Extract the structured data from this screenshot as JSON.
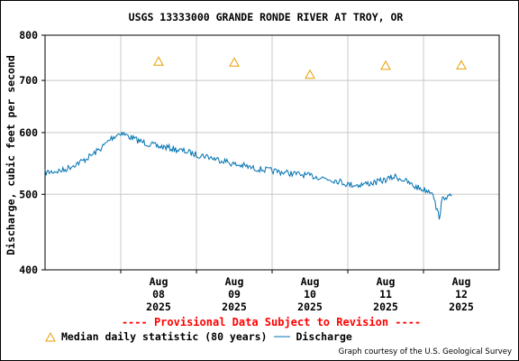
{
  "chart_data": {
    "type": "line",
    "title": "USGS 13333000 GRANDE RONDE RIVER AT TROY, OR",
    "ylabel": "Discharge, cubic feet per second",
    "xlabel": "",
    "y_scale": "log",
    "ylim": [
      400,
      800
    ],
    "y_ticks": [
      400,
      500,
      600,
      700,
      800
    ],
    "y_tick_labels": [
      "400",
      "500",
      "600",
      "700",
      "800"
    ],
    "xlim": [
      "2025-08-07 00:00",
      "2025-08-13 00:00"
    ],
    "x_ticks": [
      {
        "date": "2025-08-08 12:00",
        "label": [
          "Aug",
          "08",
          "2025"
        ]
      },
      {
        "date": "2025-08-09 12:00",
        "label": [
          "Aug",
          "09",
          "2025"
        ]
      },
      {
        "date": "2025-08-10 12:00",
        "label": [
          "Aug",
          "10",
          "2025"
        ]
      },
      {
        "date": "2025-08-11 12:00",
        "label": [
          "Aug",
          "11",
          "2025"
        ]
      },
      {
        "date": "2025-08-12 12:00",
        "label": [
          "Aug",
          "12",
          "2025"
        ]
      }
    ],
    "grid": true,
    "series": [
      {
        "name": "Median daily statistic (80 years)",
        "style": "triangle-markers",
        "color": "#e69f00",
        "x": [
          "2025-08-08 12:00",
          "2025-08-09 12:00",
          "2025-08-10 12:00",
          "2025-08-11 12:00",
          "2025-08-12 12:00"
        ],
        "values": [
          740,
          738,
          712,
          731,
          732
        ]
      },
      {
        "name": "Discharge",
        "style": "line",
        "color": "#0072b2",
        "x": [
          "2025-08-07 00:00",
          "2025-08-07 03:00",
          "2025-08-07 06:00",
          "2025-08-07 09:00",
          "2025-08-07 12:00",
          "2025-08-07 15:00",
          "2025-08-07 18:00",
          "2025-08-07 21:00",
          "2025-08-08 00:00",
          "2025-08-08 03:00",
          "2025-08-08 06:00",
          "2025-08-08 09:00",
          "2025-08-08 12:00",
          "2025-08-08 15:00",
          "2025-08-08 18:00",
          "2025-08-08 21:00",
          "2025-08-09 00:00",
          "2025-08-09 03:00",
          "2025-08-09 06:00",
          "2025-08-09 09:00",
          "2025-08-09 12:00",
          "2025-08-09 15:00",
          "2025-08-09 18:00",
          "2025-08-09 21:00",
          "2025-08-10 00:00",
          "2025-08-10 03:00",
          "2025-08-10 06:00",
          "2025-08-10 09:00",
          "2025-08-10 12:00",
          "2025-08-10 15:00",
          "2025-08-10 18:00",
          "2025-08-10 21:00",
          "2025-08-11 00:00",
          "2025-08-11 03:00",
          "2025-08-11 06:00",
          "2025-08-11 09:00",
          "2025-08-11 12:00",
          "2025-08-11 15:00",
          "2025-08-11 18:00",
          "2025-08-11 21:00",
          "2025-08-12 00:00",
          "2025-08-12 03:00",
          "2025-08-12 04:00",
          "2025-08-12 05:00",
          "2025-08-12 06:00",
          "2025-08-12 07:00",
          "2025-08-12 08:00",
          "2025-08-12 09:00"
        ],
        "values": [
          533,
          535,
          537,
          545,
          552,
          562,
          574,
          590,
          600,
          592,
          585,
          580,
          576,
          574,
          570,
          567,
          562,
          560,
          555,
          552,
          546,
          544,
          540,
          538,
          536,
          534,
          532,
          530,
          528,
          526,
          523,
          520,
          515,
          514,
          516,
          518,
          522,
          527,
          521,
          512,
          507,
          504,
          480,
          468,
          492,
          498,
          495,
          499
        ]
      }
    ]
  },
  "legend": {
    "median_label": "Median daily statistic (80 years)",
    "discharge_label": "Discharge"
  },
  "notes": {
    "provisional": "---- Provisional Data Subject to Revision ----",
    "courtesy": "Graph courtesy of the U.S. Geological Survey"
  },
  "colors": {
    "median_marker": "#e69f00",
    "discharge_line": "#0072b2",
    "grid": "#c8c8c8",
    "provisional_text": "#ff0000"
  }
}
